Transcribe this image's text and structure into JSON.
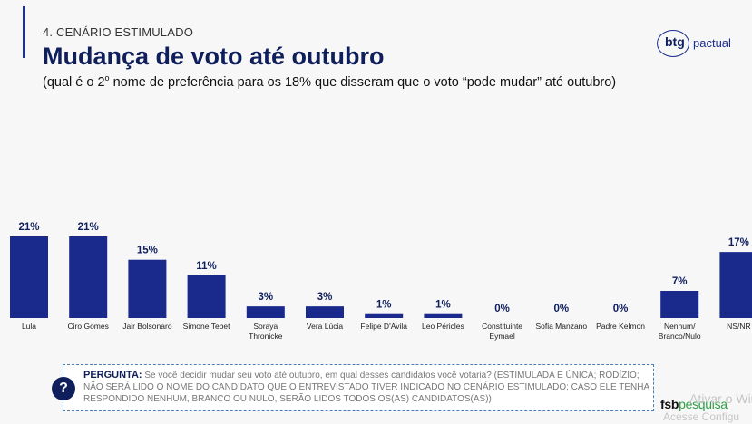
{
  "header": {
    "section": "4. CENÁRIO ESTIMULADO",
    "title": "Mudança de voto até outubro",
    "subtitle_pre": "(qual é o 2",
    "subtitle_sup": "o",
    "subtitle_post": " nome de preferência para os 18% que disseram que o voto “pode mudar” até outubro)"
  },
  "logo": {
    "part1": "btg",
    "part2": "pactual"
  },
  "chart_data": {
    "type": "bar",
    "categories": [
      "Lula",
      "Ciro Gomes",
      "Jair Bolsonaro",
      "Simone Tebet",
      "Soraya Thronicke",
      "Vera Lúcia",
      "Felipe D'Avila",
      "Leo Péricles",
      "Constituinte Eymael",
      "Sofia Manzano",
      "Padre Kelmon",
      "Nenhum/ Branco/Nulo",
      "NS/NR"
    ],
    "category_lines": [
      [
        "Lula"
      ],
      [
        "Ciro Gomes"
      ],
      [
        "Jair Bolsonaro"
      ],
      [
        "Simone Tebet"
      ],
      [
        "Soraya",
        "Thronicke"
      ],
      [
        "Vera Lúcia"
      ],
      [
        "Felipe D'Avila"
      ],
      [
        "Leo Péricles"
      ],
      [
        "Constituinte",
        "Eymael"
      ],
      [
        "Sofia Manzano"
      ],
      [
        "Padre Kelmon"
      ],
      [
        "Nenhum/",
        "Branco/Nulo"
      ],
      [
        "NS/NR"
      ]
    ],
    "values": [
      21,
      21,
      15,
      11,
      3,
      3,
      1,
      1,
      0,
      0,
      0,
      7,
      17
    ],
    "value_labels": [
      "21%",
      "21%",
      "15%",
      "11%",
      "3%",
      "3%",
      "1%",
      "1%",
      "0%",
      "0%",
      "0%",
      "7%",
      "17%"
    ],
    "bar_color": "#1a2a8c",
    "ylim": [
      0,
      21
    ]
  },
  "question": {
    "label": "PERGUNTA:",
    "text": " Se você decidir mudar seu voto até outubro, em qual desses candidatos você votaria? (ESTIMULADA E ÚNICA; RODÍZIO; NÃO SERÁ LIDO O NOME DO CANDIDATO QUE O ENTREVISTADO TIVER INDICADO NO CENÁRIO ESTIMULADO; CASO ELE TENHA RESPONDIDO NENHUM, BRANCO OU NULO, SERÃO LIDOS TODOS OS(AS) CANDIDATOS(AS))",
    "icon": "?"
  },
  "footer": {
    "brand_a": "fsb",
    "brand_b": "pesquisa",
    "watermark1": "Ativar o Wir",
    "watermark2": "Acesse Configu"
  }
}
